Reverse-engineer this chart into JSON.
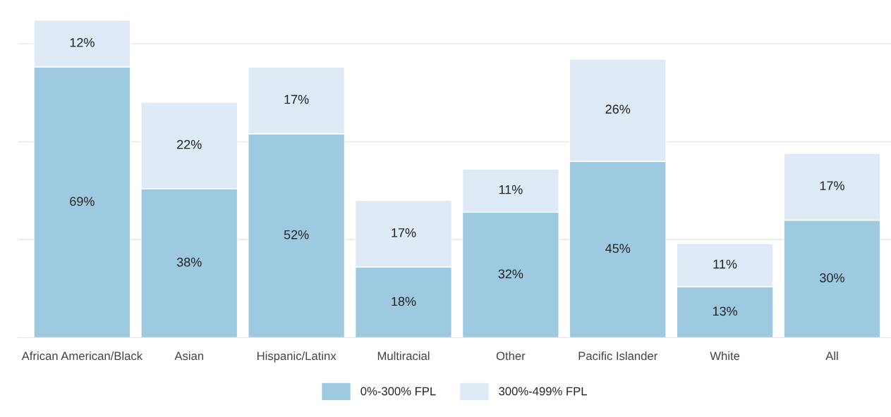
{
  "chart_data": {
    "type": "bar",
    "stacked": true,
    "categories": [
      "African American/Black",
      "Asian",
      "Hispanic/Latinx",
      "Multiracial",
      "Other",
      "Pacific Islander",
      "White",
      "All"
    ],
    "series": [
      {
        "name": "0%-300% FPL",
        "color": "#9ecae1",
        "values": [
          69,
          38,
          52,
          18,
          32,
          45,
          13,
          30
        ],
        "value_labels": [
          "69%",
          "38%",
          "52%",
          "18%",
          "32%",
          "45%",
          "13%",
          "30%"
        ]
      },
      {
        "name": "300%-499% FPL",
        "color": "#deeaf6",
        "values": [
          12,
          22,
          17,
          17,
          11,
          26,
          11,
          17
        ],
        "value_labels": [
          "12%",
          "22%",
          "17%",
          "17%",
          "11%",
          "26%",
          "11%",
          "17%"
        ]
      }
    ],
    "tick_labels": "x",
    "grid": "y",
    "legend": "bottom"
  }
}
